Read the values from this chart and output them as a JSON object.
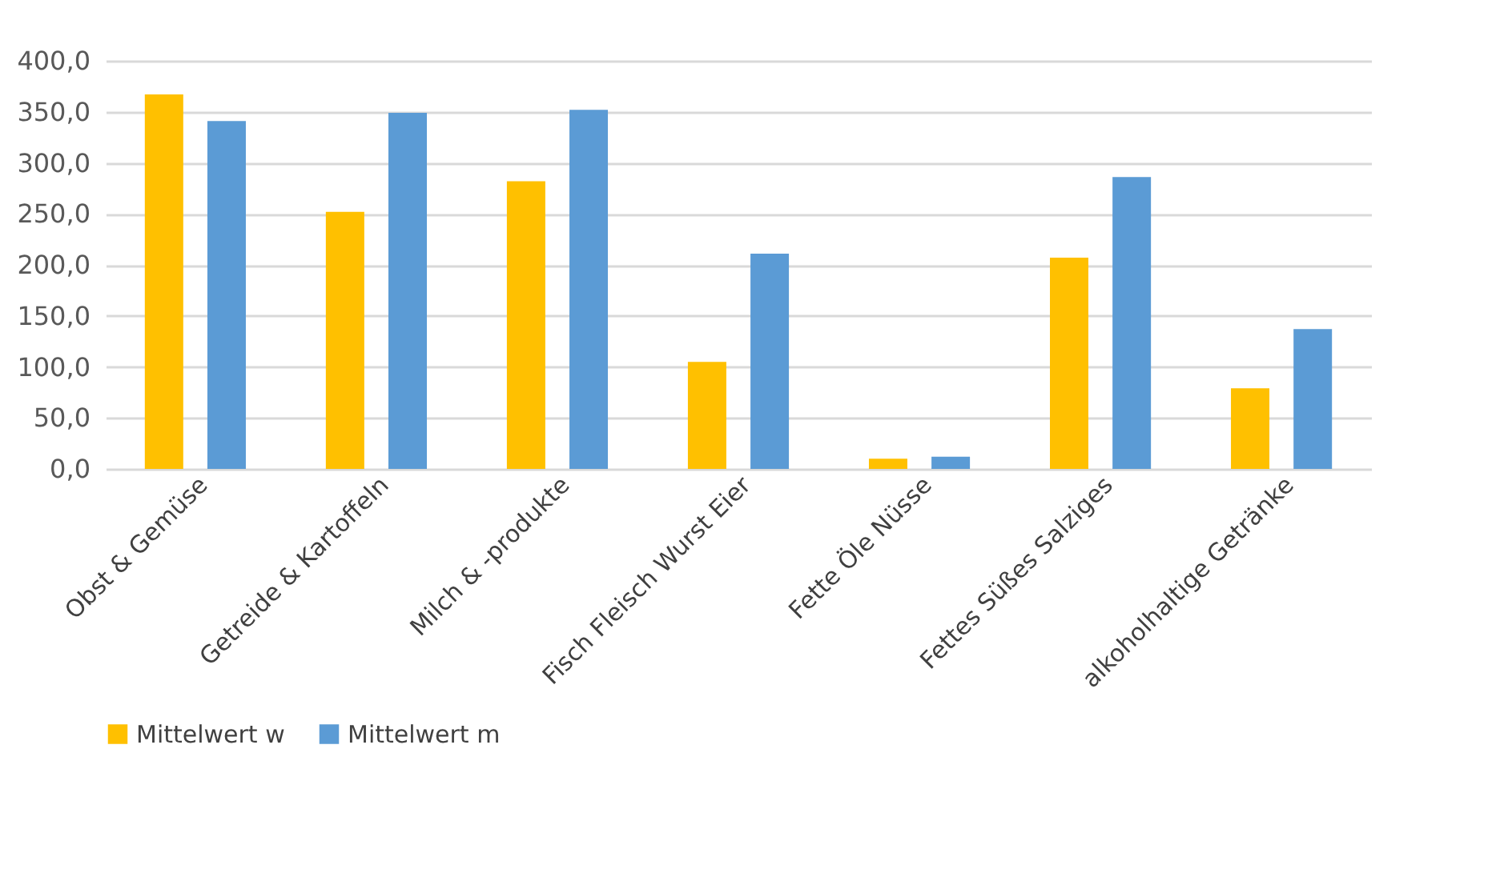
{
  "chart_data": {
    "type": "bar",
    "categories": [
      "Obst & Gemüse",
      "Getreide & Kartoffeln",
      "Milch & -produkte",
      "Fisch Fleisch Wurst Eier",
      "Fette Öle Nüsse",
      "Fettes Süßes Salziges",
      "alkoholhaltige Getränke"
    ],
    "series": [
      {
        "name": "Mittelwert w",
        "color": "#ffc000",
        "values": [
          367,
          252,
          282,
          105,
          10,
          207,
          79
        ]
      },
      {
        "name": "Mittelwert m",
        "color": "#5b9bd5",
        "values": [
          341,
          349,
          352,
          211,
          12,
          286,
          137
        ]
      }
    ],
    "ylim": [
      0,
      400
    ],
    "yticks": [
      {
        "value": 0,
        "label": "0,0"
      },
      {
        "value": 50,
        "label": "50,0"
      },
      {
        "value": 100,
        "label": "100,0"
      },
      {
        "value": 150,
        "label": "150,0"
      },
      {
        "value": 200,
        "label": "200,0"
      },
      {
        "value": 250,
        "label": "250,0"
      },
      {
        "value": 300,
        "label": "300,0"
      },
      {
        "value": 350,
        "label": "350,0"
      },
      {
        "value": 400,
        "label": "400,0"
      }
    ],
    "grid": "y",
    "legend": "bottom"
  }
}
